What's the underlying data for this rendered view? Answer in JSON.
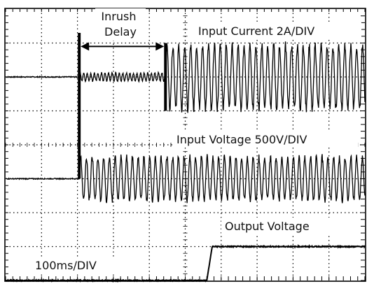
{
  "chart_data": {
    "type": "line",
    "xlabel": "100ms/DIV",
    "divisions": {
      "x": 10,
      "y": 8
    },
    "grid": true,
    "annotations": {
      "inrush_delay": "Inrush\nDelay",
      "inrush_start_div": 2.05,
      "inrush_end_div": 4.45
    },
    "series": [
      {
        "name": "Input Current 2A/DIV",
        "scale": "2A/DIV",
        "baseline_div": 6.0,
        "segments": [
          {
            "from_div": 0.0,
            "to_div": 2.05,
            "shape": "flat"
          },
          {
            "from_div": 2.05,
            "to_div": 4.45,
            "shape": "small-oscillation",
            "amplitude_div": 0.12
          },
          {
            "from_div": 4.45,
            "to_div": 10.0,
            "shape": "ac-oscillation",
            "amplitude_div": 0.95
          }
        ]
      },
      {
        "name": "Input Voltage 500V/DIV",
        "scale": "500V/DIV",
        "baseline_div": 3.0,
        "segments": [
          {
            "from_div": 0.0,
            "to_div": 2.05,
            "shape": "flat"
          },
          {
            "from_div": 2.05,
            "to_div": 10.0,
            "shape": "ac-oscillation",
            "amplitude_div": 0.65
          }
        ]
      },
      {
        "name": "Output Voltage",
        "baseline_div": 0.0,
        "segments": [
          {
            "from_div": 0.0,
            "to_div": 5.6,
            "shape": "flat"
          },
          {
            "from_div": 5.6,
            "to_div": 5.75,
            "shape": "rise",
            "level_div": 1.0
          },
          {
            "from_div": 5.75,
            "to_div": 10.0,
            "shape": "flat",
            "level_div": 1.0
          }
        ]
      }
    ]
  }
}
